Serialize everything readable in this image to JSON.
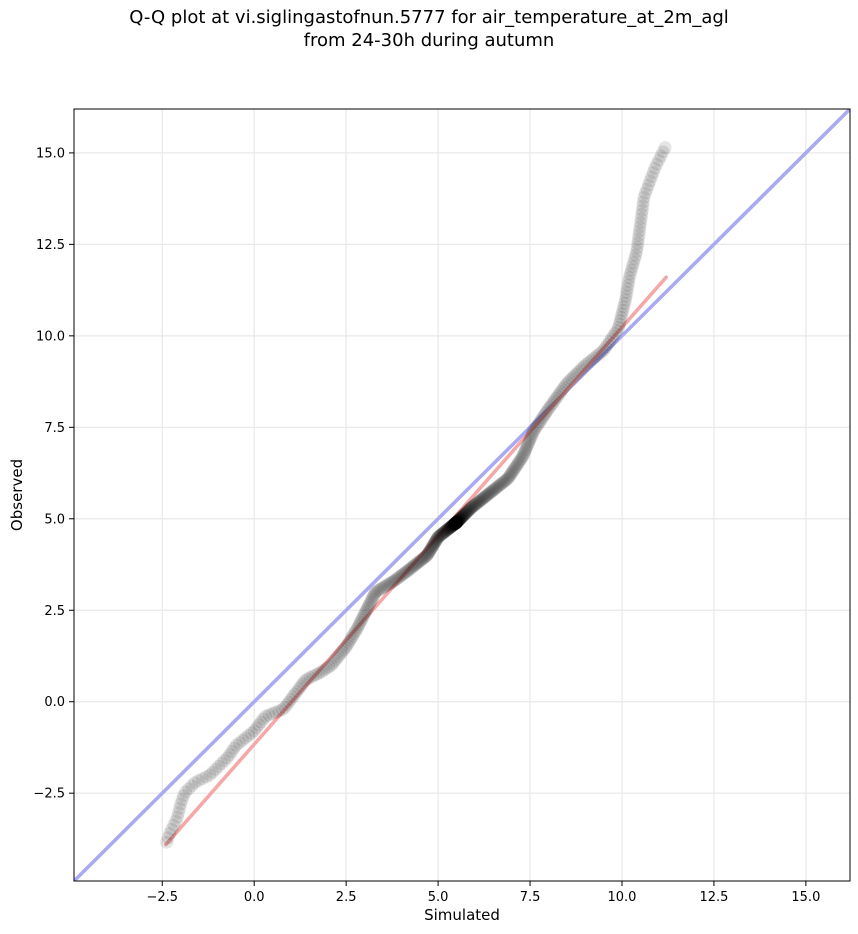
{
  "chart_data": {
    "type": "scatter",
    "title_line1": "Q-Q plot at vi.siglingastofnun.5777 for air_temperature_at_2m_agl",
    "title_line2": "from 24-30h during autumn",
    "xlabel": "Simulated",
    "ylabel": "Observed",
    "xlim": [
      -4.9,
      16.2
    ],
    "ylim": [
      -4.9,
      16.2
    ],
    "xticks": [
      -2.5,
      0.0,
      2.5,
      5.0,
      7.5,
      10.0,
      12.5,
      15.0
    ],
    "yticks": [
      -2.5,
      0.0,
      2.5,
      5.0,
      7.5,
      10.0,
      12.5,
      15.0
    ],
    "xtick_labels": [
      "−2.5",
      "0.0",
      "2.5",
      "5.0",
      "7.5",
      "10.0",
      "12.5",
      "15.0"
    ],
    "ytick_labels": [
      "−2.5",
      "0.0",
      "2.5",
      "5.0",
      "7.5",
      "10.0",
      "12.5",
      "15.0"
    ],
    "grid": true,
    "reference_line": {
      "name": "1:1",
      "color": "#aaaaf2",
      "from": [
        -4.9,
        -4.9
      ],
      "to": [
        16.2,
        16.2
      ]
    },
    "fit_line": {
      "color": "#f5a8a8",
      "from": [
        -2.4,
        -3.9
      ],
      "to": [
        11.2,
        11.6
      ]
    },
    "quantile_knots": [
      [
        -2.4,
        -3.9
      ],
      [
        -2.3,
        -3.6
      ],
      [
        -2.1,
        -3.2
      ],
      [
        -2.0,
        -2.8
      ],
      [
        -1.9,
        -2.5
      ],
      [
        -1.6,
        -2.2
      ],
      [
        -1.2,
        -2.0
      ],
      [
        -0.7,
        -1.5
      ],
      [
        -0.5,
        -1.2
      ],
      [
        0.0,
        -0.8
      ],
      [
        0.3,
        -0.4
      ],
      [
        0.8,
        -0.2
      ],
      [
        1.1,
        0.2
      ],
      [
        1.4,
        0.6
      ],
      [
        1.8,
        0.8
      ],
      [
        2.1,
        1.0
      ],
      [
        2.5,
        1.5
      ],
      [
        2.8,
        2.0
      ],
      [
        3.1,
        2.6
      ],
      [
        3.3,
        3.0
      ],
      [
        3.8,
        3.3
      ],
      [
        4.2,
        3.6
      ],
      [
        4.7,
        4.0
      ],
      [
        5.0,
        4.5
      ],
      [
        5.5,
        4.9
      ],
      [
        5.9,
        5.3
      ],
      [
        6.4,
        5.7
      ],
      [
        6.9,
        6.1
      ],
      [
        7.3,
        6.7
      ],
      [
        7.6,
        7.4
      ],
      [
        8.0,
        8.0
      ],
      [
        8.5,
        8.7
      ],
      [
        9.0,
        9.2
      ],
      [
        9.5,
        9.6
      ],
      [
        9.9,
        10.2
      ],
      [
        10.1,
        11.0
      ],
      [
        10.2,
        11.6
      ],
      [
        10.4,
        12.3
      ],
      [
        10.6,
        13.8
      ],
      [
        10.9,
        14.6
      ],
      [
        11.2,
        15.2
      ]
    ],
    "n_points": 420
  }
}
